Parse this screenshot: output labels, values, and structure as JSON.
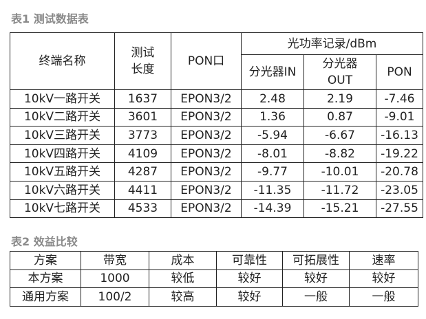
{
  "table1": {
    "caption": "表1  测试数据表",
    "headers": {
      "name": "终端名称",
      "length": "测试长度",
      "pon_port": "PON口",
      "power_group": "光功率记录/dBm",
      "splitter_in": "分光器IN",
      "splitter_out": "分光器OUT",
      "pon": "PON"
    },
    "rows": [
      [
        "10kV一路开关",
        "1637",
        "EPON3/2",
        "2.48",
        "2.19",
        "-7.46"
      ],
      [
        "10kV二路开关",
        "3601",
        "EPON3/2",
        "1.36",
        "0.87",
        "-9.01"
      ],
      [
        "10kV三路开关",
        "3773",
        "EPON3/2",
        "-5.94",
        "-6.67",
        "-16.13"
      ],
      [
        "10kV四路开关",
        "4109",
        "EPON3/2",
        "-8.01",
        "-8.82",
        "-19.22"
      ],
      [
        "10kV五路开关",
        "4287",
        "EPON3/2",
        "-9.77",
        "-10.01",
        "-20.78"
      ],
      [
        "10kV六路开关",
        "4411",
        "EPON3/2",
        "-11.35",
        "-11.72",
        "-23.05"
      ],
      [
        "10kV七路开关",
        "4533",
        "EPON3/2",
        "-14.39",
        "-15.21",
        "-27.55"
      ]
    ]
  },
  "table2": {
    "caption": "表2   效益比较",
    "headers": [
      "方案",
      "带宽",
      "成本",
      "可靠性",
      "可拓展性",
      "速率"
    ],
    "rows": [
      [
        "本方案",
        "1000",
        "较低",
        "较好",
        "较好",
        "较好"
      ],
      [
        "通用方案",
        "100/2",
        "较高",
        "较好",
        "一般",
        "一般"
      ]
    ]
  }
}
